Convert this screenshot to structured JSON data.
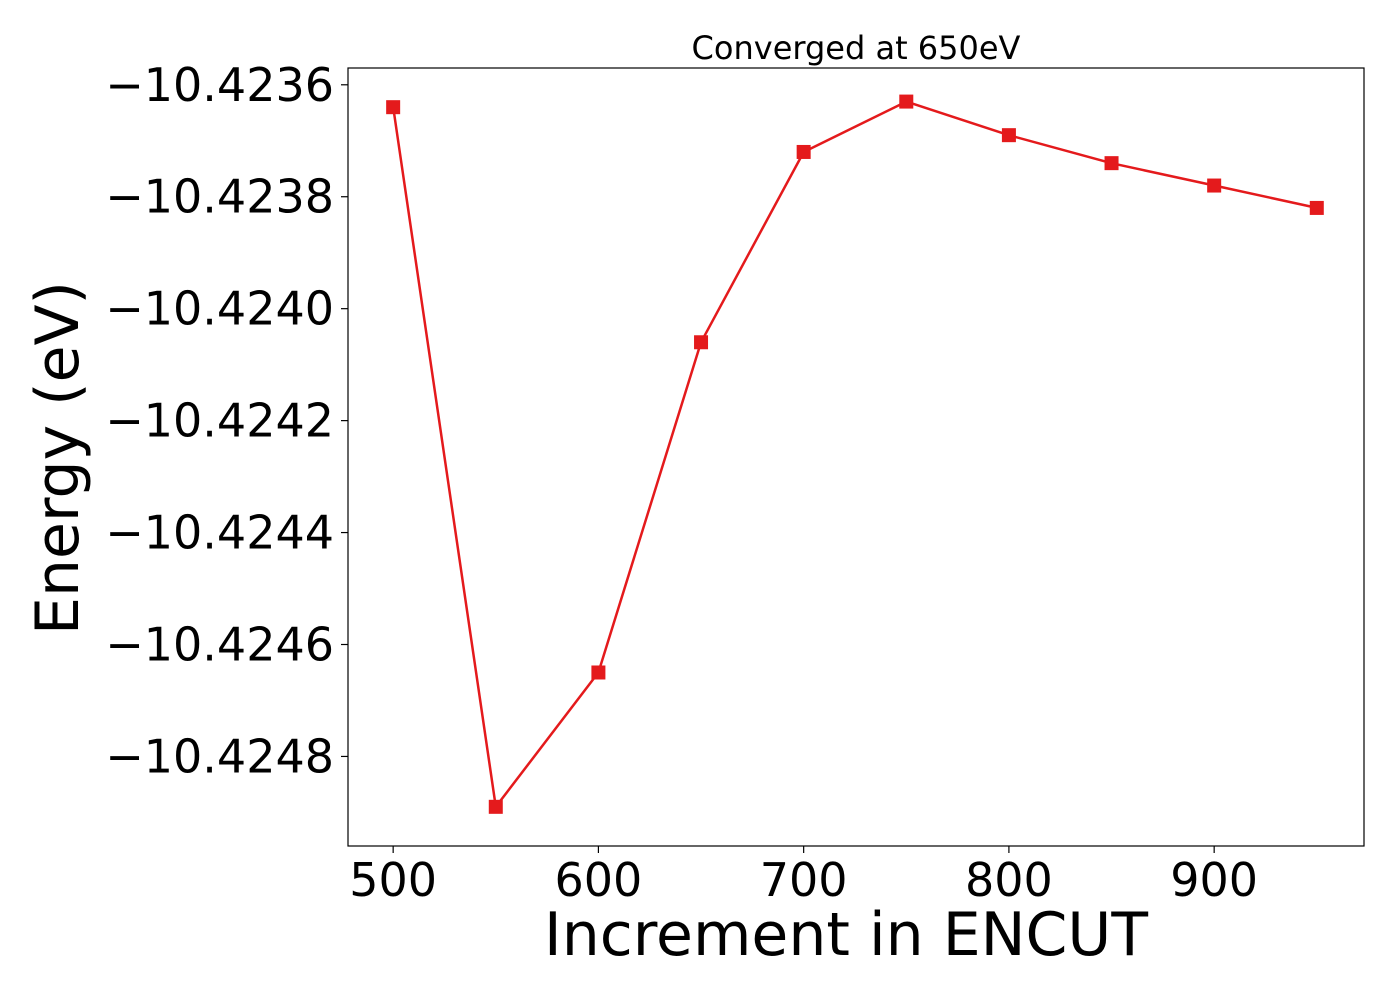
{
  "chart_data": {
    "type": "line",
    "title": "Converged at 650eV",
    "xlabel": "Increment in ENCUT",
    "ylabel": "Energy (eV)",
    "x": [
      500,
      550,
      600,
      650,
      700,
      750,
      800,
      850,
      900,
      950
    ],
    "series": [
      {
        "values": [
          -10.42364,
          -10.42489,
          -10.42465,
          -10.42406,
          -10.42372,
          -10.42363,
          -10.42369,
          -10.42374,
          -10.42378,
          -10.42382
        ],
        "color": "#e41a1c",
        "marker": "square"
      }
    ],
    "xlim": [
      478,
      973
    ],
    "ylim": [
      -10.42496,
      -10.42357
    ],
    "xticks": [
      500,
      600,
      700,
      800,
      900
    ],
    "xtick_labels": [
      "500",
      "600",
      "700",
      "800",
      "900"
    ],
    "yticks": [
      -10.4236,
      -10.4238,
      -10.424,
      -10.4242,
      -10.4244,
      -10.4246,
      -10.4248
    ],
    "ytick_labels": [
      "−10.4236",
      "−10.4238",
      "−10.4240",
      "−10.4242",
      "−10.4244",
      "−10.4246",
      "−10.4248"
    ],
    "grid": false,
    "legend": "none"
  }
}
